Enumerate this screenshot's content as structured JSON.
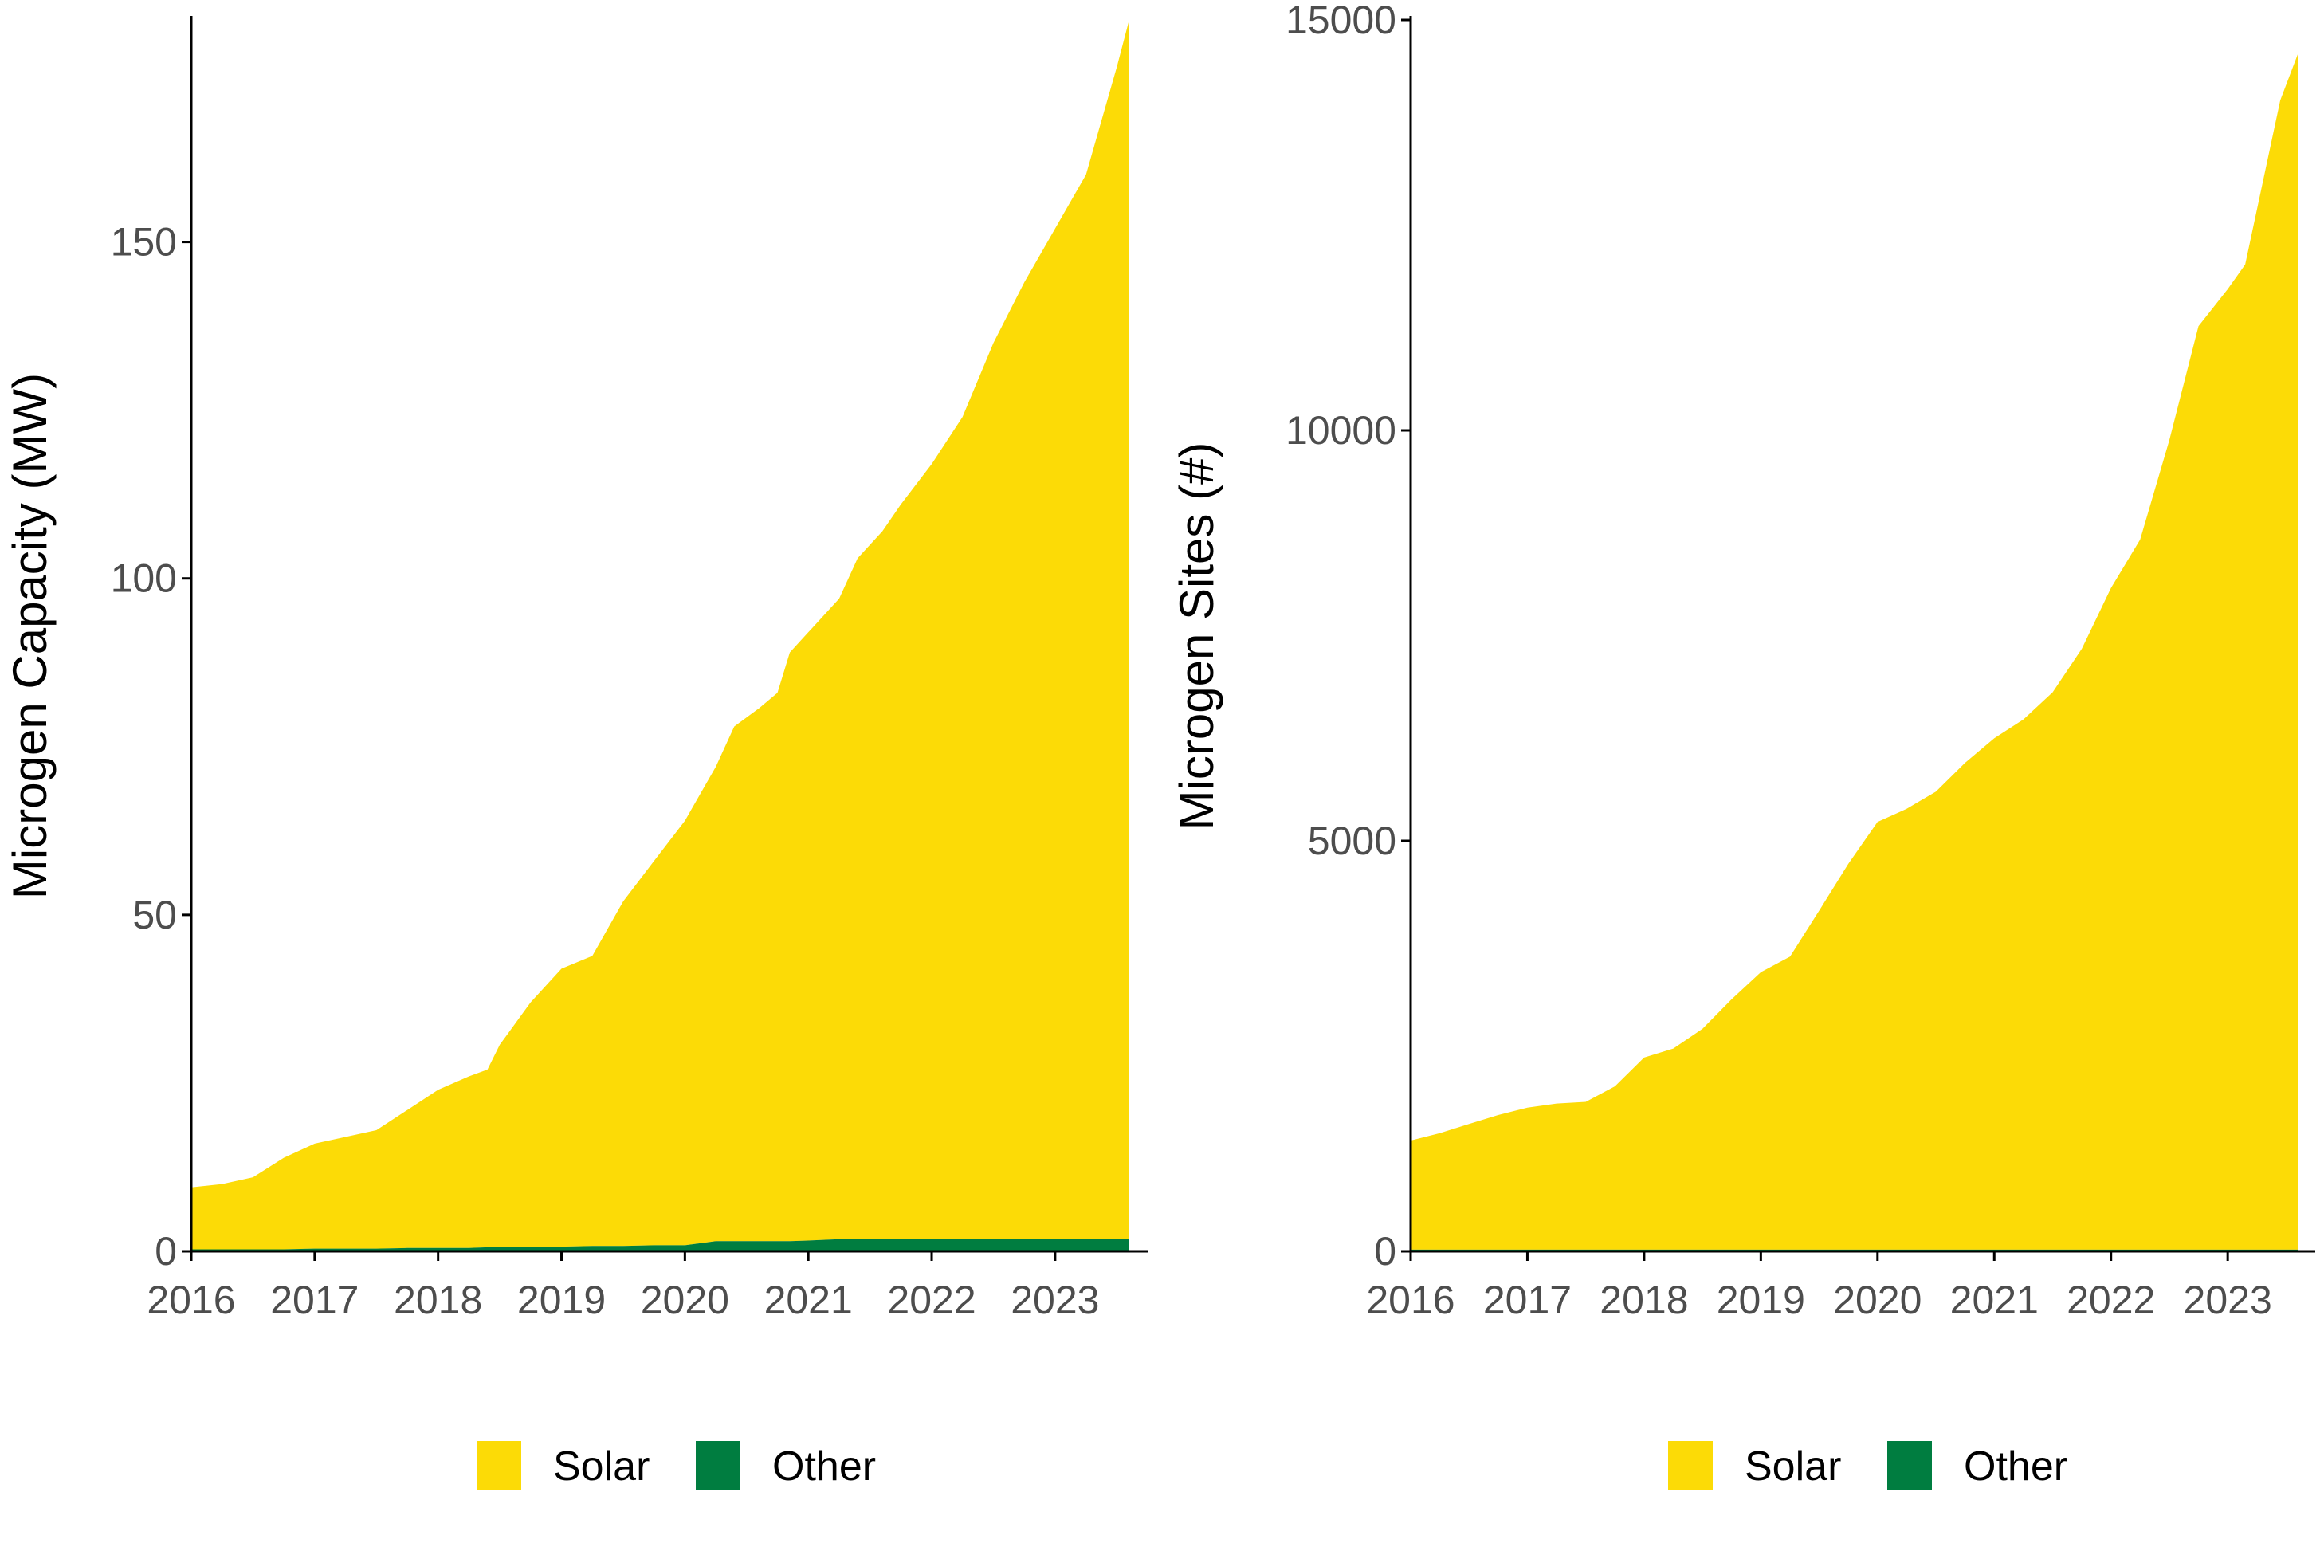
{
  "colors": {
    "solar": "#FCDB06",
    "other": "#007D40",
    "axis": "#000000",
    "tick_text": "#4d4d4d"
  },
  "chart_data": [
    {
      "type": "area",
      "stacked": true,
      "ylabel": "Microgen Capacity (MW)",
      "xlabel": "",
      "xlim": [
        2016.0,
        2023.75
      ],
      "ylim": [
        0,
        183
      ],
      "x_ticks": [
        2016,
        2017,
        2018,
        2019,
        2020,
        2021,
        2022,
        2023
      ],
      "x_tick_labels": [
        "2016",
        "2017",
        "2018",
        "2019",
        "2020",
        "2021",
        "2022",
        "2023"
      ],
      "y_ticks": [
        0,
        50,
        100,
        150
      ],
      "y_tick_labels": [
        "0",
        "50",
        "100",
        "150"
      ],
      "grid": false,
      "legend": {
        "position": "bottom",
        "entries": [
          "Solar",
          "Other"
        ]
      },
      "x": [
        2016.0,
        2016.25,
        2016.5,
        2016.75,
        2017.0,
        2017.25,
        2017.5,
        2017.75,
        2018.0,
        2018.25,
        2018.4,
        2018.5,
        2018.75,
        2019.0,
        2019.25,
        2019.5,
        2019.75,
        2020.0,
        2020.25,
        2020.4,
        2020.6,
        2020.75,
        2020.85,
        2021.0,
        2021.25,
        2021.4,
        2021.6,
        2021.75,
        2022.0,
        2022.25,
        2022.5,
        2022.75,
        2023.0,
        2023.25,
        2023.5,
        2023.6
      ],
      "series": [
        {
          "name": "Other",
          "values": [
            0.3,
            0.3,
            0.3,
            0.3,
            0.4,
            0.4,
            0.4,
            0.5,
            0.5,
            0.5,
            0.6,
            0.6,
            0.6,
            0.7,
            0.8,
            0.8,
            0.9,
            0.9,
            1.5,
            1.5,
            1.5,
            1.5,
            1.5,
            1.6,
            1.8,
            1.8,
            1.8,
            1.8,
            1.9,
            1.9,
            1.9,
            1.9,
            1.9,
            1.9,
            1.9,
            1.9
          ]
        },
        {
          "name": "Solar",
          "values": [
            9.2,
            9.7,
            10.7,
            13.6,
            15.6,
            16.6,
            17.6,
            20.5,
            23.5,
            25.5,
            26.4,
            30.1,
            36.4,
            41.3,
            43.1,
            51.2,
            57.1,
            63.1,
            70.5,
            76.5,
            79.2,
            81.5,
            87.5,
            90.4,
            95.2,
            101.2,
            105.2,
            109.2,
            115.1,
            122.1,
            133.1,
            142.1,
            150.1,
            158.1,
            174.1,
            181.1
          ]
        }
      ]
    },
    {
      "type": "area",
      "stacked": true,
      "ylabel": "Microgen Sites (#)",
      "xlabel": "",
      "xlim": [
        2016.0,
        2023.75
      ],
      "ylim": [
        0,
        15000
      ],
      "x_ticks": [
        2016,
        2017,
        2018,
        2019,
        2020,
        2021,
        2022,
        2023
      ],
      "x_tick_labels": [
        "2016",
        "2017",
        "2018",
        "2019",
        "2020",
        "2021",
        "2022",
        "2023"
      ],
      "y_ticks": [
        0,
        5000,
        10000,
        15000
      ],
      "y_tick_labels": [
        "0",
        "5000",
        "10000",
        "15000"
      ],
      "grid": false,
      "legend": {
        "position": "bottom",
        "entries": [
          "Solar",
          "Other"
        ]
      },
      "x": [
        2016.0,
        2016.25,
        2016.5,
        2016.75,
        2017.0,
        2017.25,
        2017.5,
        2017.75,
        2018.0,
        2018.25,
        2018.5,
        2018.75,
        2019.0,
        2019.25,
        2019.5,
        2019.75,
        2020.0,
        2020.25,
        2020.5,
        2020.75,
        2021.0,
        2021.25,
        2021.5,
        2021.75,
        2022.0,
        2022.25,
        2022.5,
        2022.75,
        2023.0,
        2023.15,
        2023.3,
        2023.45,
        2023.6
      ],
      "series": [
        {
          "name": "Other",
          "values": [
            20,
            20,
            20,
            20,
            20,
            20,
            20,
            20,
            20,
            20,
            20,
            20,
            20,
            20,
            20,
            20,
            20,
            20,
            20,
            20,
            20,
            20,
            20,
            20,
            20,
            20,
            20,
            20,
            20,
            20,
            20,
            20,
            20
          ]
        },
        {
          "name": "Solar",
          "values": [
            1330,
            1420,
            1530,
            1640,
            1730,
            1780,
            1800,
            1990,
            2340,
            2450,
            2690,
            3050,
            3380,
            3570,
            4130,
            4700,
            5210,
            5370,
            5580,
            5930,
            6230,
            6460,
            6790,
            7320,
            8060,
            8650,
            9860,
            11250,
            11700,
            12000,
            13000,
            14000,
            14560
          ]
        }
      ]
    }
  ]
}
